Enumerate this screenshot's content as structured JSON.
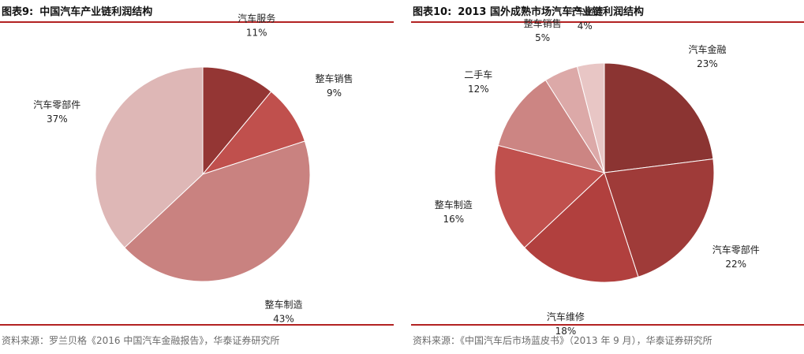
{
  "chart_data": [
    {
      "type": "pie",
      "figure_no": "图表9:",
      "title": "中国汽车产业链利润结构",
      "source": "资料来源：罗兰贝格《2016 中国汽车金融报告》，华泰证券研究所",
      "slices": [
        {
          "label": "汽车服务",
          "value": 11,
          "value_label": "11%",
          "color": "#943634"
        },
        {
          "label": "整车销售",
          "value": 9,
          "value_label": "9%",
          "color": "#c0504d"
        },
        {
          "label": "整车制造",
          "value": 43,
          "value_label": "43%",
          "color": "#c98280"
        },
        {
          "label": "汽车零部件",
          "value": 37,
          "value_label": "37%",
          "color": "#deb7b6"
        }
      ]
    },
    {
      "type": "pie",
      "figure_no": "图表10:",
      "title": "2013 国外成熟市场汽车产业链利润结构",
      "source": "资料来源：《中国汽车后市场蓝皮书》（2013 年 9 月），华泰证券研究所",
      "slices": [
        {
          "label": "汽车金融",
          "value": 23,
          "value_label": "23%",
          "color": "#8b3432"
        },
        {
          "label": "汽车零部件",
          "value": 22,
          "value_label": "22%",
          "color": "#9f3b39"
        },
        {
          "label": "汽车维修",
          "value": 18,
          "value_label": "18%",
          "color": "#b1403e"
        },
        {
          "label": "整车制造",
          "value": 16,
          "value_label": "16%",
          "color": "#c0504d"
        },
        {
          "label": "二手车",
          "value": 12,
          "value_label": "12%",
          "color": "#cc8583"
        },
        {
          "label": "整车销售",
          "value": 5,
          "value_label": "5%",
          "color": "#dca9a8"
        },
        {
          "label": "汽车租赁",
          "value": 4,
          "value_label": "4%",
          "color": "#e8c6c5"
        }
      ]
    }
  ]
}
